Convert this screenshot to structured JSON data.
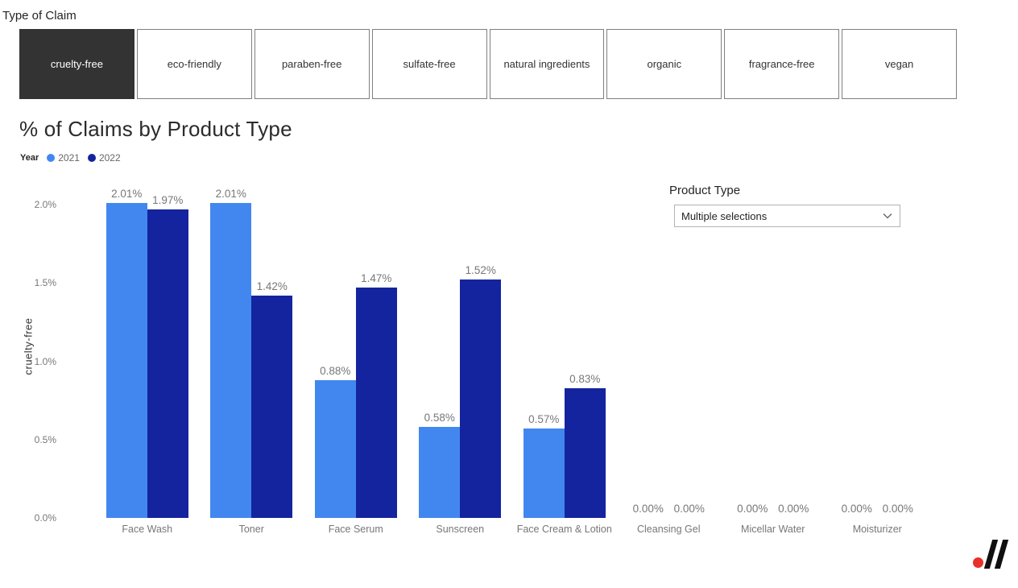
{
  "filter_bar": {
    "label": "Type of Claim",
    "selected": "cruelty-free",
    "items": [
      {
        "label": "cruelty-free",
        "selected": true
      },
      {
        "label": "eco-friendly",
        "selected": false
      },
      {
        "label": "paraben-free",
        "selected": false
      },
      {
        "label": "sulfate-free",
        "selected": false
      },
      {
        "label": "natural ingredients",
        "selected": false
      },
      {
        "label": "organic",
        "selected": false
      },
      {
        "label": "fragrance-free",
        "selected": false
      },
      {
        "label": "vegan",
        "selected": false
      }
    ]
  },
  "chart": {
    "title": "% of Claims by Product Type",
    "legend_label": "Year"
  },
  "chart_data": {
    "type": "bar",
    "title": "% of Claims by Product Type",
    "categories": [
      "Face Wash",
      "Toner",
      "Face Serum",
      "Sunscreen",
      "Face Cream & Lotion",
      "Cleansing Gel",
      "Micellar Water",
      "Moisturizer"
    ],
    "series": [
      {
        "name": "2021",
        "color": "#4287F0",
        "values": [
          2.01,
          2.01,
          0.88,
          0.58,
          0.57,
          0.0,
          0.0,
          0.0
        ]
      },
      {
        "name": "2022",
        "color": "#14249E",
        "values": [
          1.97,
          1.42,
          1.47,
          1.52,
          0.83,
          0.0,
          0.0,
          0.0
        ]
      }
    ],
    "data_labels": [
      [
        "2.01%",
        "1.97%"
      ],
      [
        "2.01%",
        "1.42%"
      ],
      [
        "0.88%",
        "1.47%"
      ],
      [
        "0.58%",
        "1.52%"
      ],
      [
        "0.57%",
        "0.83%"
      ],
      [
        "0.00%",
        "0.00%"
      ],
      [
        "0.00%",
        "0.00%"
      ],
      [
        "0.00%",
        "0.00%"
      ]
    ],
    "xlabel": "",
    "ylabel": "cruelty-free",
    "ylim": [
      0,
      2.2
    ],
    "y_ticks": [
      "0.0%",
      "0.5%",
      "1.0%",
      "1.5%",
      "2.0%"
    ],
    "y_tick_values": [
      0,
      0.5,
      1.0,
      1.5,
      2.0
    ],
    "grid": false,
    "legend_position": "top-left"
  },
  "slicer": {
    "title": "Product Type",
    "value": "Multiple selections",
    "chevron_icon": "chevron-down"
  },
  "logo": {
    "dot_color": "#E8312A",
    "stroke_color": "#101010"
  }
}
